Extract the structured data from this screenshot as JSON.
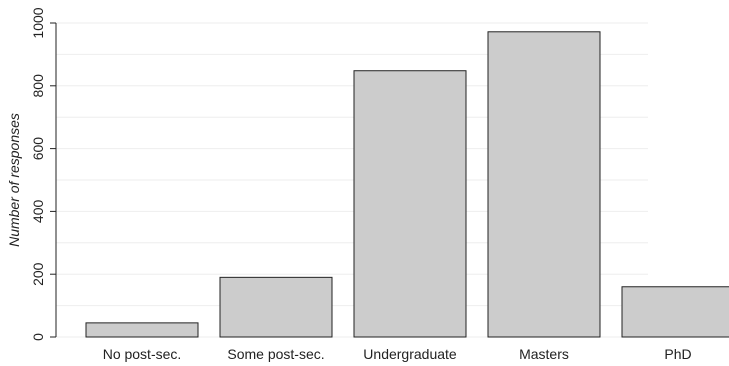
{
  "chart_data": {
    "type": "bar",
    "categories": [
      "No post-sec.",
      "Some post-sec.",
      "Undergraduate",
      "Masters",
      "PhD"
    ],
    "values": [
      45,
      190,
      848,
      972,
      160
    ],
    "title": "",
    "xlabel": "",
    "ylabel": "Number of responses",
    "ylim": [
      0,
      1000
    ],
    "yticks": [
      0,
      200,
      400,
      600,
      800,
      1000
    ],
    "grid": true,
    "legend": "none",
    "colors": {
      "bar_fill": "#cccccc",
      "bar_stroke": "#222222",
      "grid": "#eeeeee",
      "axis": "#222222"
    }
  }
}
